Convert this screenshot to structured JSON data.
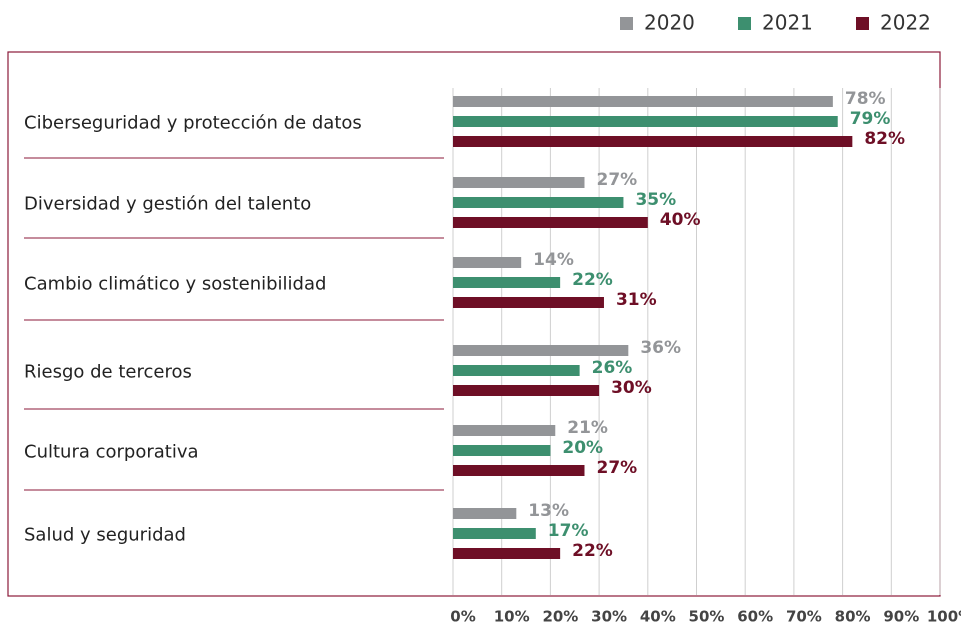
{
  "chart_data": {
    "type": "bar",
    "categories": [
      "Ciberseguridad y protección de datos",
      "Diversidad y gestión del talento",
      "Cambio climático y sostenibilidad",
      "Riesgo de terceros",
      "Cultura corporativa",
      "Salud y seguridad"
    ],
    "series": [
      {
        "name": "2020",
        "color": "#939598",
        "values": [
          78,
          27,
          14,
          36,
          21,
          13
        ],
        "value_labels": [
          "78%",
          "27%",
          "14%",
          "36%",
          "21%",
          "13%"
        ]
      },
      {
        "name": "2021",
        "color": "#3d8f6f",
        "values": [
          79,
          35,
          22,
          26,
          20,
          17
        ],
        "value_labels": [
          "79%",
          "35%",
          "22%",
          "26%",
          "20%",
          "17%"
        ]
      },
      {
        "name": "2022",
        "color": "#6e0f26",
        "values": [
          82,
          40,
          31,
          30,
          27,
          22
        ],
        "value_labels": [
          "82%",
          "40%",
          "31%",
          "30%",
          "27%",
          "22%"
        ]
      }
    ],
    "xlim": [
      0,
      100
    ],
    "xticks": [
      {
        "value": 0,
        "label": "0%"
      },
      {
        "value": 10,
        "label": "10%"
      },
      {
        "value": 20,
        "label": "20%"
      },
      {
        "value": 30,
        "label": "30%"
      },
      {
        "value": 40,
        "label": "40%"
      },
      {
        "value": 50,
        "label": "50%"
      },
      {
        "value": 60,
        "label": "60%"
      },
      {
        "value": 70,
        "label": "70%"
      },
      {
        "value": 80,
        "label": "80%"
      },
      {
        "value": 90,
        "label": "90%"
      },
      {
        "value": 100,
        "label": "100%"
      }
    ],
    "grid": true,
    "legend": "top-right"
  }
}
